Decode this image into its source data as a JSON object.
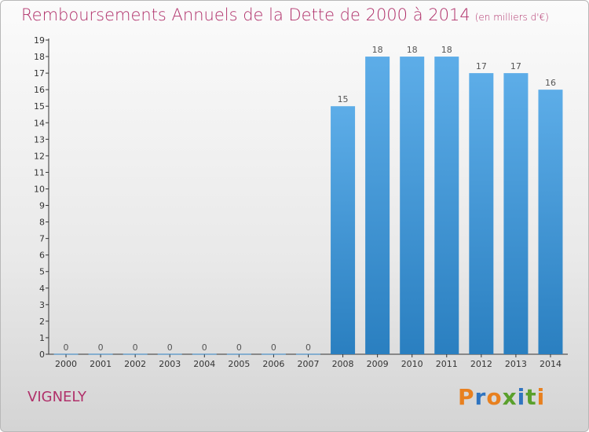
{
  "page": {
    "title": "Remboursements Annuels de la Dette de 2000 à 2014",
    "subtitle": "(en milliers d'€)",
    "place": "VIGNELY",
    "logo": "Proxiti"
  },
  "colors": {
    "title": "#b0306a",
    "bar_top": "#5dade8",
    "bar_bottom": "#2a7fc0",
    "logo_letters": [
      "#e8801f",
      "#2f74c0",
      "#e8801f",
      "#5aa02c",
      "#2f74c0",
      "#5aa02c",
      "#e8801f"
    ]
  },
  "chart_data": {
    "type": "bar",
    "title": "Remboursements Annuels de la Dette de 2000 à 2014",
    "subtitle": "(en milliers d'€)",
    "categories": [
      "2000",
      "2001",
      "2002",
      "2003",
      "2004",
      "2005",
      "2006",
      "2007",
      "2008",
      "2009",
      "2010",
      "2011",
      "2012",
      "2013",
      "2014"
    ],
    "values": [
      0,
      0,
      0,
      0,
      0,
      0,
      0,
      0,
      15,
      18,
      18,
      18,
      17,
      17,
      16
    ],
    "ylim": [
      0,
      19
    ],
    "yticks": [
      0,
      1,
      2,
      3,
      4,
      5,
      6,
      7,
      8,
      9,
      10,
      11,
      12,
      13,
      14,
      15,
      16,
      17,
      18,
      19
    ],
    "grid": false
  }
}
